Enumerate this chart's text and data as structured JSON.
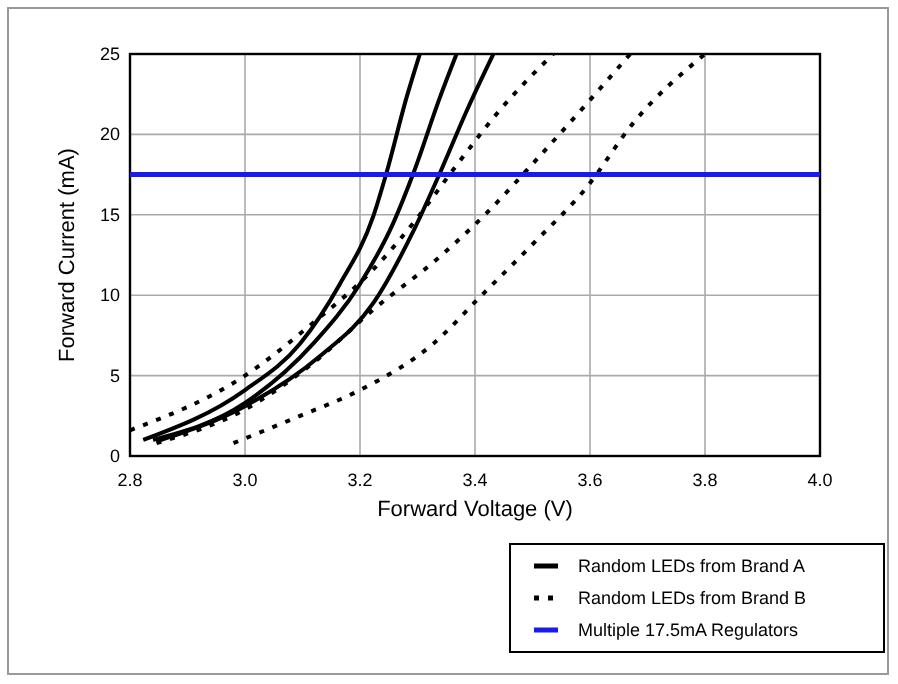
{
  "chart_data": {
    "type": "line",
    "xlabel": "Forward Voltage (V)",
    "ylabel": "Forward Current (mA)",
    "xlim": [
      2.8,
      4.0
    ],
    "ylim": [
      0,
      25
    ],
    "xticks": [
      2.8,
      {
        "value": 3,
        "label": "3.0"
      },
      3.2,
      3.4,
      3.6,
      3.8,
      {
        "value": 4,
        "label": "4.0"
      }
    ],
    "yticks": [
      0,
      5,
      10,
      15,
      20,
      25
    ],
    "grid": true,
    "legend": "bottom right",
    "series": [
      {
        "name": "Random LEDs from Brand A",
        "color": "#000000",
        "line_style": "solid",
        "x": [
          2.823,
          3.0,
          3.096,
          3.165,
          3.223,
          3.246,
          3.281,
          3.304
        ],
        "values": [
          1.0,
          4.1,
          7.0,
          10.7,
          14.9,
          17.6,
          22.3,
          25
        ]
      },
      {
        "color": "#000000",
        "line_style": "solid",
        "x": [
          2.84,
          3.0,
          3.119,
          3.2,
          3.258,
          3.293,
          3.339,
          3.368
        ],
        "values": [
          1.0,
          3.3,
          7.0,
          10.7,
          14.5,
          17.6,
          22.3,
          25
        ]
      },
      {
        "color": "#000000",
        "line_style": "solid",
        "x": [
          2.846,
          3.0,
          3.13,
          3.223,
          3.293,
          3.339,
          3.386,
          3.432
        ],
        "values": [
          0.9,
          3.1,
          6.2,
          9.5,
          14.0,
          17.6,
          21.5,
          25
        ]
      },
      {
        "name": "Random LEDs from Brand B",
        "color": "#000000",
        "line_style": "dotted",
        "x": [
          2.8,
          3.0,
          3.119,
          3.223,
          3.293,
          3.362,
          3.443,
          3.536
        ],
        "values": [
          1.6,
          5.0,
          8.3,
          11.6,
          14.5,
          17.8,
          21.5,
          25
        ]
      },
      {
        "color": "#000000",
        "line_style": "dotted",
        "x": [
          2.846,
          3.0,
          3.119,
          3.223,
          3.339,
          3.42,
          3.501,
          3.594,
          3.67
        ],
        "values": [
          0.8,
          2.9,
          5.8,
          9.1,
          12.4,
          15.1,
          18.2,
          21.9,
          25
        ]
      },
      {
        "color": "#000000",
        "line_style": "dotted",
        "x": [
          2.98,
          3.096,
          3.2,
          3.328,
          3.409,
          3.501,
          3.594,
          3.675,
          3.8
        ],
        "values": [
          0.8,
          2.5,
          4.1,
          7.0,
          9.9,
          13.2,
          16.7,
          20.7,
          25
        ]
      }
    ],
    "ref_lines": [
      {
        "axis": "y",
        "value": 17.5,
        "label": "Multiple 17.5mA Regulators",
        "color": "#1a1aee",
        "line_style": "solid"
      }
    ]
  }
}
